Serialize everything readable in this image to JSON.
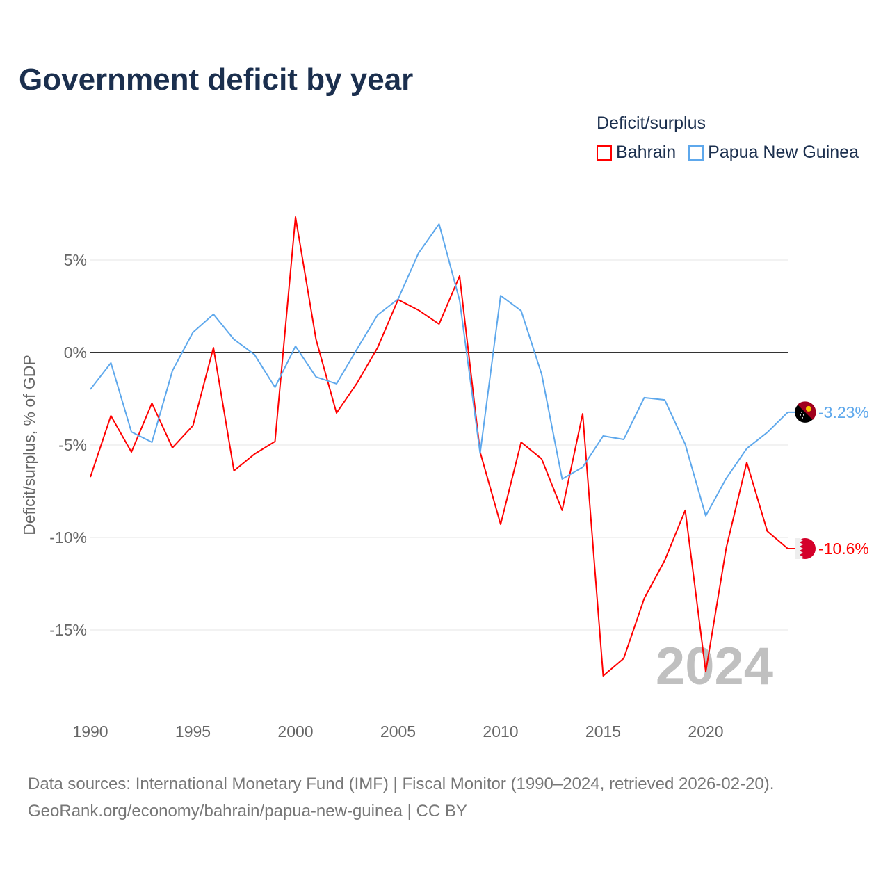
{
  "title": "Government deficit by year",
  "legend": {
    "title": "Deficit/surplus",
    "items": [
      {
        "name": "Bahrain",
        "color": "#ff0000"
      },
      {
        "name": "Papua New Guinea",
        "color": "#5ea8ec"
      }
    ]
  },
  "chart_data": {
    "type": "line",
    "title": "Government deficit by year",
    "xlabel": "",
    "ylabel": "Deficit/surplus, % of GDP",
    "x": [
      1990,
      1991,
      1992,
      1993,
      1994,
      1995,
      1996,
      1997,
      1998,
      1999,
      2000,
      2001,
      2002,
      2003,
      2004,
      2005,
      2006,
      2007,
      2008,
      2009,
      2010,
      2011,
      2012,
      2013,
      2014,
      2015,
      2016,
      2017,
      2018,
      2019,
      2020,
      2021,
      2022,
      2023,
      2024
    ],
    "xlim": [
      1990,
      2024
    ],
    "ylim": [
      -19,
      9
    ],
    "x_ticks": [
      1990,
      1995,
      2000,
      2005,
      2010,
      2015,
      2020
    ],
    "y_ticks": [
      {
        "v": 5,
        "label": "5%"
      },
      {
        "v": 0,
        "label": "0%"
      },
      {
        "v": -5,
        "label": "-5%"
      },
      {
        "v": -10,
        "label": "-10%"
      },
      {
        "v": -15,
        "label": "-15%"
      }
    ],
    "series": [
      {
        "name": "Bahrain",
        "color": "#ff0000",
        "end_label": "-10.6%",
        "values": [
          -6.73,
          -3.42,
          -5.38,
          -2.74,
          -5.15,
          -3.95,
          0.26,
          -6.39,
          -5.49,
          -4.81,
          7.33,
          0.71,
          -3.27,
          -1.65,
          0.26,
          2.86,
          2.29,
          1.54,
          4.14,
          -5.38,
          -9.29,
          -4.85,
          -5.75,
          -8.53,
          -3.31,
          -17.48,
          -16.54,
          -13.3,
          -11.24,
          -8.53,
          -17.26,
          -10.56,
          -5.94,
          -9.66,
          -10.6
        ]
      },
      {
        "name": "Papua New Guinea",
        "color": "#5ea8ec",
        "end_label": "-3.23%",
        "values": [
          -1.99,
          -0.56,
          -4.29,
          -4.85,
          -0.98,
          1.09,
          2.07,
          0.71,
          -0.11,
          -1.88,
          0.34,
          -1.32,
          -1.69,
          0.19,
          2.03,
          2.89,
          5.38,
          6.95,
          2.82,
          -5.45,
          3.08,
          2.26,
          -1.17,
          -6.84,
          -6.2,
          -4.51,
          -4.7,
          -2.44,
          -2.56,
          -4.96,
          -8.83,
          -6.8,
          -5.19,
          -4.32,
          -3.23
        ]
      }
    ],
    "year_watermark": "2024",
    "grid": true
  },
  "footer": {
    "line1": "Data sources: International Monetary Fund (IMF) | Fiscal Monitor (1990–2024, retrieved 2026-02-20).",
    "line2": "GeoRank.org/economy/bahrain/papua-new-guinea | CC BY"
  }
}
